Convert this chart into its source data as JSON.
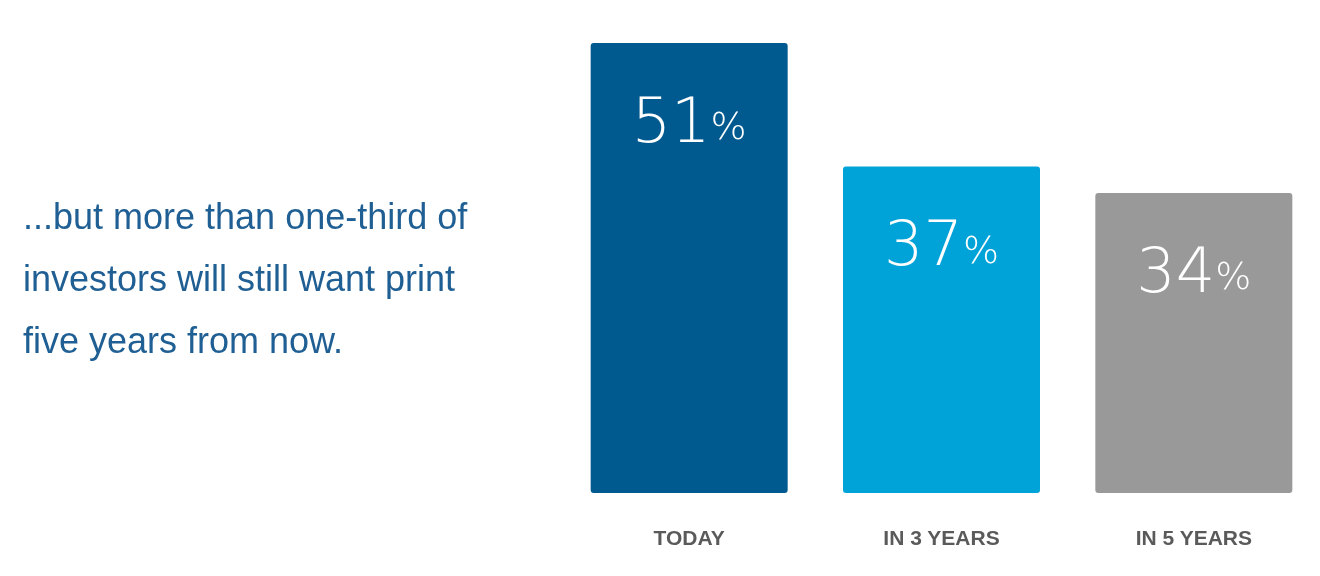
{
  "chart_data": {
    "type": "bar",
    "title": "...but more than one-third of investors will still want print five years from now.",
    "categories": [
      "TODAY",
      "IN 3 YEARS",
      "IN 5 YEARS"
    ],
    "values": [
      51,
      37,
      34
    ],
    "colors": [
      "#005a8f",
      "#00a3d8",
      "#999999"
    ],
    "value_labels": [
      "51%",
      "37%",
      "34%"
    ]
  }
}
